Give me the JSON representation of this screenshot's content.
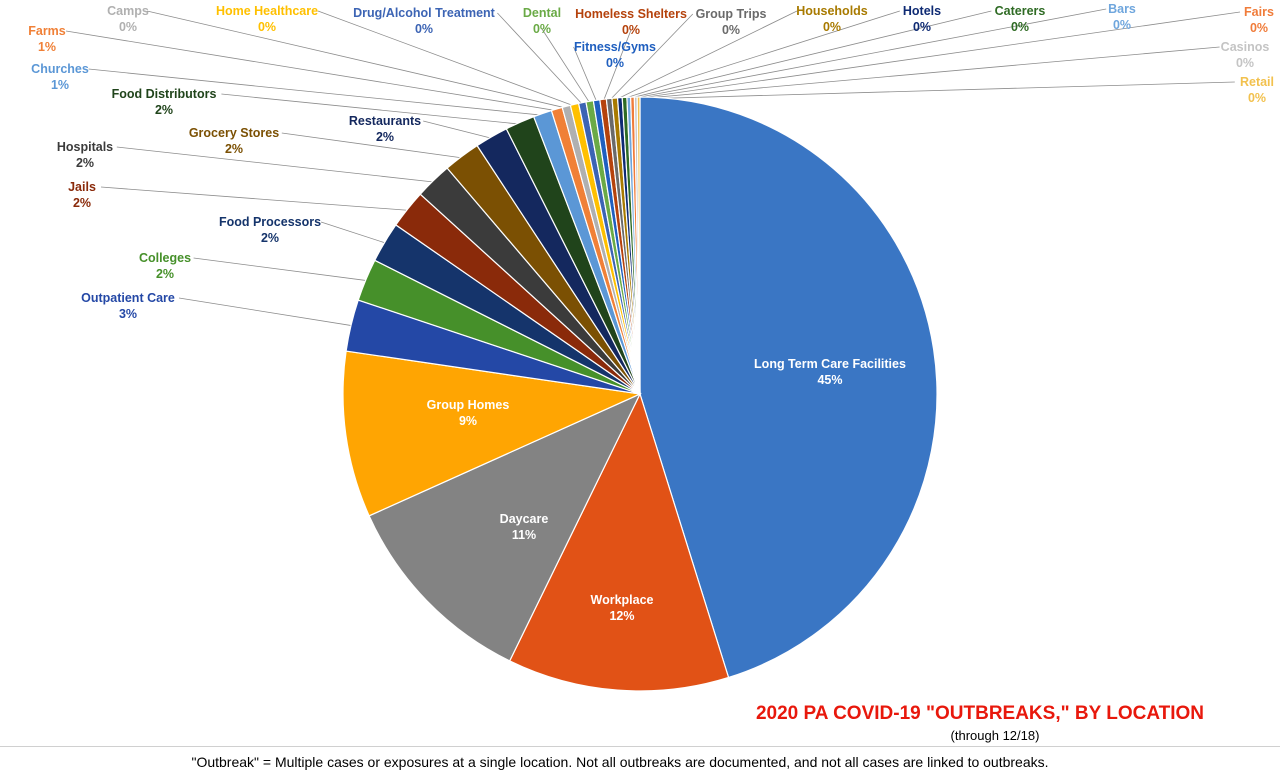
{
  "chart_data": {
    "type": "pie",
    "title": "2020 PA COVID-19 \"OUTBREAKS,\" BY LOCATION",
    "subtitle": "(through 12/18)",
    "slices": [
      {
        "label": "Long Term Care Facilities",
        "value": 45,
        "value_label": "45%",
        "color": "#3a76c4"
      },
      {
        "label": "Workplace",
        "value": 12,
        "value_label": "12%",
        "color": "#e15216"
      },
      {
        "label": "Daycare",
        "value": 11,
        "value_label": "11%",
        "color": "#838383"
      },
      {
        "label": "Group Homes",
        "value": 9,
        "value_label": "9%",
        "color": "#ffa502"
      },
      {
        "label": "Outpatient Care",
        "value": 2.8,
        "value_label": "3%",
        "color": "#2448a6"
      },
      {
        "label": "Colleges",
        "value": 2.3,
        "value_label": "2%",
        "color": "#46902a"
      },
      {
        "label": "Food Processors",
        "value": 2.2,
        "value_label": "2%",
        "color": "#15346b"
      },
      {
        "label": "Jails",
        "value": 2.1,
        "value_label": "2%",
        "color": "#8a2a0a"
      },
      {
        "label": "Hospitals",
        "value": 2.0,
        "value_label": "2%",
        "color": "#3b3b3b"
      },
      {
        "label": "Grocery Stores",
        "value": 2.0,
        "value_label": "2%",
        "color": "#7b5003"
      },
      {
        "label": "Restaurants",
        "value": 1.8,
        "value_label": "2%",
        "color": "#14285e"
      },
      {
        "label": "Food Distributors",
        "value": 1.6,
        "value_label": "2%",
        "color": "#20441b"
      },
      {
        "label": "Churches",
        "value": 1.0,
        "value_label": "1%",
        "color": "#5b97d6"
      },
      {
        "label": "Farms",
        "value": 0.6,
        "value_label": "1%",
        "color": "#f08037"
      },
      {
        "label": "Camps",
        "value": 0.45,
        "value_label": "0%",
        "color": "#b0b0b0"
      },
      {
        "label": "Home Healthcare",
        "value": 0.45,
        "value_label": "0%",
        "color": "#ffc000"
      },
      {
        "label": "Drug/Alcohol Treatment",
        "value": 0.4,
        "value_label": "0%",
        "color": "#3c64b4"
      },
      {
        "label": "Dental",
        "value": 0.4,
        "value_label": "0%",
        "color": "#6aaa46"
      },
      {
        "label": "Fitness/Gyms",
        "value": 0.35,
        "value_label": "0%",
        "color": "#1f5fbf"
      },
      {
        "label": "Homeless Shelters",
        "value": 0.35,
        "value_label": "0%",
        "color": "#b5420c"
      },
      {
        "label": "Group Trips",
        "value": 0.3,
        "value_label": "0%",
        "color": "#6a6a6a"
      },
      {
        "label": "Households",
        "value": 0.3,
        "value_label": "0%",
        "color": "#a87a00"
      },
      {
        "label": "Hotels",
        "value": 0.25,
        "value_label": "0%",
        "color": "#0e2a73"
      },
      {
        "label": "Caterers",
        "value": 0.25,
        "value_label": "0%",
        "color": "#2f6b24"
      },
      {
        "label": "Bars",
        "value": 0.2,
        "value_label": "0%",
        "color": "#6fa6dd"
      },
      {
        "label": "Fairs",
        "value": 0.2,
        "value_label": "0%",
        "color": "#f07c3a"
      },
      {
        "label": "Casinos",
        "value": 0.15,
        "value_label": "0%",
        "color": "#c4c4c4"
      },
      {
        "label": "Retail",
        "value": 0.15,
        "value_label": "0%",
        "color": "#f2c14e"
      }
    ],
    "legend": "none"
  },
  "footer": {
    "note": "\"Outbreak\" = Multiple cases or exposures at a single location. Not all outbreaks are documented, and not all cases are linked to outbreaks."
  }
}
